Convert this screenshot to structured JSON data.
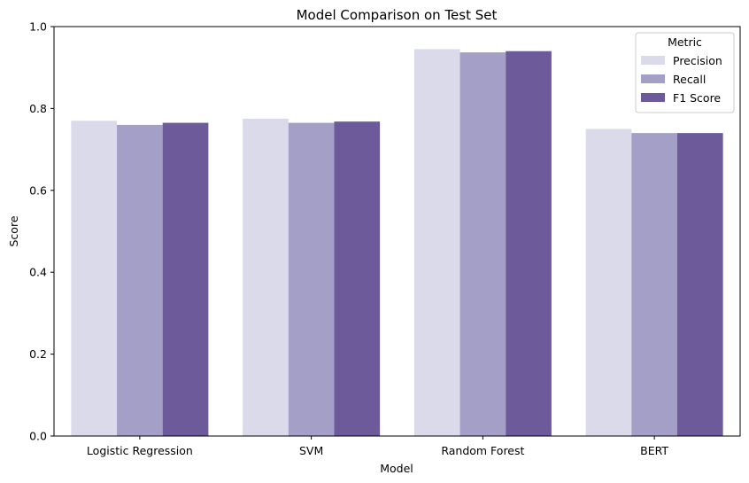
{
  "chart_data": {
    "type": "bar",
    "title": "Model Comparison on Test Set",
    "xlabel": "Model",
    "ylabel": "Score",
    "ylim": [
      0,
      1.0
    ],
    "yticks": [
      "0.0",
      "0.2",
      "0.4",
      "0.6",
      "0.8",
      "1.0"
    ],
    "grid": false,
    "categories": [
      "Logistic Regression",
      "SVM",
      "Random Forest",
      "BERT"
    ],
    "legend": {
      "title": "Metric",
      "placement": "top-right"
    },
    "series": [
      {
        "name": "Precision",
        "color": "#dadaea",
        "values": [
          0.77,
          0.775,
          0.945,
          0.75
        ]
      },
      {
        "name": "Recall",
        "color": "#a39fc6",
        "values": [
          0.76,
          0.765,
          0.937,
          0.74
        ]
      },
      {
        "name": "F1 Score",
        "color": "#6c5a9a",
        "values": [
          0.765,
          0.768,
          0.94,
          0.74
        ]
      }
    ]
  }
}
